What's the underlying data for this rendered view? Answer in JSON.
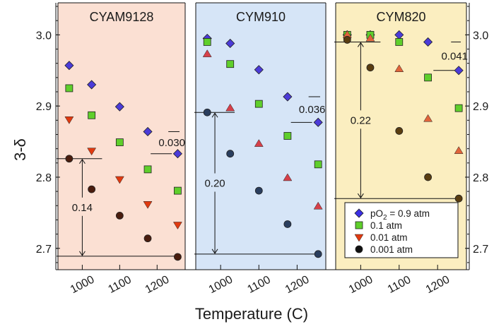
{
  "chart_data": {
    "type": "scatter",
    "xlabel": "Temperature (C)",
    "ylabel": "3-δ",
    "ylim": [
      2.67,
      3.045
    ],
    "yticks": [
      "2.7",
      "2.8",
      "2.9",
      "3.0"
    ],
    "panels": [
      {
        "title": "CYAM9128",
        "background": "#fbe0d3",
        "xlim": [
          935,
          1275
        ],
        "xticks": [
          "1000",
          "1100",
          "1200"
        ],
        "series": [
          {
            "name": "pO2 = 0.9 atm",
            "marker": "diamond",
            "color": "#4b3bd8",
            "x": [
              965,
              1025,
              1100,
              1175,
              1255
            ],
            "y": [
              2.957,
              2.93,
              2.899,
              2.864,
              2.833
            ]
          },
          {
            "name": "0.1 atm",
            "marker": "square",
            "color": "#5fcf2b",
            "x": [
              965,
              1025,
              1100,
              1175,
              1255
            ],
            "y": [
              2.925,
              2.887,
              2.849,
              2.811,
              2.781
            ]
          },
          {
            "name": "0.01 atm",
            "marker": "triangle-down",
            "color": "#e03a10",
            "x": [
              965,
              1025,
              1100,
              1175,
              1255
            ],
            "y": [
              2.881,
              2.837,
              2.797,
              2.762,
              2.733
            ]
          },
          {
            "name": "0.001 atm",
            "marker": "circle",
            "color": "#4a1d0e",
            "x": [
              965,
              1025,
              1100,
              1175,
              1255
            ],
            "y": [
              2.826,
              2.783,
              2.746,
              2.714,
              2.688
            ]
          }
        ],
        "annotations": [
          {
            "text": "0.14",
            "kind": "span",
            "x": 1000,
            "y1": 2.826,
            "y2": 2.689
          },
          {
            "text": "0.030",
            "kind": "gap",
            "x": 1230,
            "y1": 2.864,
            "y2": 2.833
          }
        ]
      },
      {
        "title": "CYM910",
        "background": "#d6e5f7",
        "xlim": [
          935,
          1275
        ],
        "xticks": [
          "1000",
          "1100",
          "1200"
        ],
        "series": [
          {
            "name": "pO2 = 0.9 atm",
            "marker": "diamond",
            "color": "#4b3bd8",
            "x": [
              965,
              1025,
              1100,
              1175,
              1255
            ],
            "y": [
              2.995,
              2.988,
              2.951,
              2.913,
              2.877
            ]
          },
          {
            "name": "0.1 atm",
            "marker": "square",
            "color": "#5fcf2b",
            "x": [
              965,
              1025,
              1100,
              1175,
              1255
            ],
            "y": [
              2.99,
              2.959,
              2.903,
              2.858,
              2.818
            ]
          },
          {
            "name": "0.01 atm",
            "marker": "triangle-up",
            "color": "#d6404a",
            "x": [
              965,
              1025,
              1100,
              1175,
              1255
            ],
            "y": [
              2.973,
              2.897,
              2.847,
              2.799,
              2.759
            ]
          },
          {
            "name": "0.001 atm",
            "marker": "circle",
            "color": "#2a3e5e",
            "x": [
              965,
              1025,
              1100,
              1175,
              1255
            ],
            "y": [
              2.891,
              2.833,
              2.781,
              2.734,
              2.692
            ]
          }
        ],
        "annotations": [
          {
            "text": "0.20",
            "kind": "span",
            "x": 985,
            "y1": 2.891,
            "y2": 2.692
          },
          {
            "text": "0.036",
            "kind": "gap",
            "x": 1230,
            "y1": 2.913,
            "y2": 2.877
          }
        ]
      },
      {
        "title": "CYM820",
        "background": "#fbeec0",
        "xlim": [
          935,
          1275
        ],
        "xticks": [
          "1000",
          "1100",
          "1200"
        ],
        "series": [
          {
            "name": "pO2 = 0.9 atm",
            "marker": "diamond",
            "color": "#4b3bd8",
            "x": [
              965,
              1025,
              1100,
              1175,
              1255
            ],
            "y": [
              3.0,
              3.0,
              3.0,
              2.99,
              2.95
            ]
          },
          {
            "name": "0.1 atm",
            "marker": "square",
            "color": "#5fcf2b",
            "x": [
              965,
              1025,
              1100,
              1175,
              1255
            ],
            "y": [
              3.0,
              3.0,
              2.99,
              2.94,
              2.897
            ]
          },
          {
            "name": "0.01 atm",
            "marker": "triangle-up",
            "color": "#e0643a",
            "x": [
              965,
              1025,
              1100,
              1175,
              1255
            ],
            "y": [
              3.0,
              2.995,
              2.952,
              2.882,
              2.837
            ]
          },
          {
            "name": "0.001 atm",
            "marker": "circle",
            "color": "#5a3d10",
            "x": [
              965,
              1025,
              1100,
              1175,
              1255
            ],
            "y": [
              2.993,
              2.954,
              2.865,
              2.8,
              2.77
            ]
          }
        ],
        "annotations": [
          {
            "text": "0.22",
            "kind": "span",
            "x": 1000,
            "y1": 2.99,
            "y2": 2.77
          },
          {
            "text": "0.041",
            "kind": "gap",
            "x": 1235,
            "y1": 2.99,
            "y2": 2.95
          }
        ]
      }
    ],
    "legend": {
      "location": "lower-right of third panel",
      "entries": [
        {
          "pre": "pO",
          "sub": "2",
          "post": " = 0.9 atm",
          "marker": "diamond",
          "color": "#3b2fe6"
        },
        {
          "label": "0.1 atm",
          "marker": "square",
          "color": "#5fcf2b"
        },
        {
          "label": "0.01 atm",
          "marker": "triangle-down",
          "color": "#e03a10"
        },
        {
          "label": "0.001 atm",
          "marker": "circle",
          "color": "#111111"
        }
      ]
    }
  }
}
